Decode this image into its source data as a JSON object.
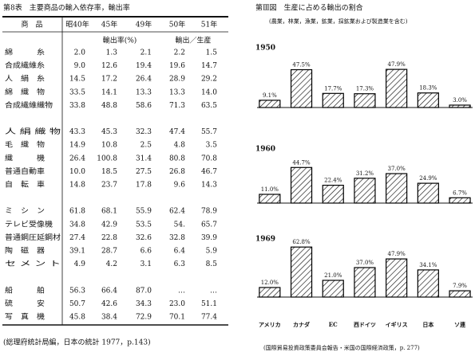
{
  "table": {
    "title": "第8表　主要商品の輸入依存率，輸出率",
    "header": [
      "商　品",
      "昭40年",
      "45年",
      "49年",
      "50年",
      "51年"
    ],
    "subheader": [
      "輸出率(%)",
      "輸出／生産"
    ],
    "groups": [
      [
        {
          "name": "綿　　　糸",
          "cells": [
            "2.0",
            "1.3",
            "2.1",
            "2.2",
            "1.5"
          ]
        },
        {
          "name": "合成繊維糸",
          "cells": [
            "9.0",
            "12.6",
            "19.4",
            "19.6",
            "14.7"
          ]
        },
        {
          "name": "人　絹　糸",
          "cells": [
            "14.5",
            "17.2",
            "26.4",
            "28.9",
            "29.2"
          ]
        },
        {
          "name": "綿　織　物",
          "cells": [
            "33.5",
            "14.1",
            "13.3",
            "13.3",
            "14.0"
          ]
        },
        {
          "name": "合成繊維織物",
          "cells": [
            "33.8",
            "48.8",
            "58.6",
            "71.3",
            "63.5"
          ]
        }
      ],
      [
        {
          "name": "人 絹 織 物",
          "cells": [
            "43.3",
            "45.3",
            "32.3",
            "47.4",
            "55.7"
          ]
        },
        {
          "name": "毛　織　物",
          "cells": [
            "14.9",
            "10.8",
            "2.5",
            "4.8",
            "3.5"
          ]
        },
        {
          "name": "織　　　機",
          "cells": [
            "26.4",
            "100.8",
            "31.4",
            "80.8",
            "70.8"
          ]
        },
        {
          "name": "普通自動車",
          "cells": [
            "10.0",
            "18.5",
            "27.5",
            "26.8",
            "46.7"
          ]
        },
        {
          "name": "自　転　車",
          "cells": [
            "14.8",
            "23.7",
            "17.8",
            "9.6",
            "14.3"
          ]
        }
      ],
      [
        {
          "name": "ミ　シ　ン",
          "cells": [
            "61.8",
            "68.1",
            "55.9",
            "62.4",
            "78.9"
          ]
        },
        {
          "name": "テレビ受像機",
          "cells": [
            "34.8",
            "42.9",
            "53.5",
            "54.",
            "65.7"
          ]
        },
        {
          "name": "普通鋼圧延鋼材",
          "cells": [
            "27.4",
            "22.8",
            "32.6",
            "32.8",
            "39.9"
          ]
        },
        {
          "name": "陶　磁　器",
          "cells": [
            "39.1",
            "28.7",
            "6.6",
            "6.4",
            "5.9"
          ]
        },
        {
          "name": "セ メ ン ト",
          "cells": [
            "4.9",
            "4.2",
            "3.1",
            "6.3",
            "8.5"
          ]
        }
      ],
      [
        {
          "name": "船　　　舶",
          "cells": [
            "56.3",
            "66.4",
            "87.0",
            "…",
            "…"
          ]
        },
        {
          "name": "硫　　　安",
          "cells": [
            "50.7",
            "42.6",
            "34.3",
            "23.0",
            "51.1"
          ]
        },
        {
          "name": "写　真　機",
          "cells": [
            "45.8",
            "38.4",
            "72.9",
            "70.1",
            "77.4"
          ]
        }
      ]
    ],
    "note": "(総理府統計局編，日本の統計 1977，p.143)"
  },
  "figure": {
    "title": "第Ⅲ図　生産に占める輸出の割合",
    "subtitle": "(農業，林業，漁業，鉱業，採鉱業および製造業を含む)",
    "source": "(国際貿易投資政策委員会報告・米国の国際経済政策，p. 277)"
  },
  "chart_data": [
    {
      "type": "bar",
      "title": "1950",
      "color": "#000000",
      "values": [
        9.1,
        47.5,
        17.7,
        17.3,
        47.9,
        18.3,
        3.0
      ],
      "value_labels": [
        "9.1%",
        "47.5%",
        "17.7%",
        "17.3%",
        "47.9%",
        "18.3%",
        "3.0%"
      ]
    },
    {
      "type": "bar",
      "title": "1960",
      "color": "#000000",
      "values": [
        11.0,
        44.7,
        22.4,
        31.2,
        37.0,
        24.9,
        6.7
      ],
      "value_labels": [
        "11.0%",
        "44.7%",
        "22.4%",
        "31.2%",
        "37.0%",
        "24.9%",
        "6.7%"
      ]
    },
    {
      "type": "bar",
      "title": "1969",
      "color": "#000000",
      "categories": [
        "アメリカ",
        "カナダ",
        "EC",
        "西ドイツ",
        "イギリス",
        "日本",
        "ソ連"
      ],
      "values": [
        12.0,
        62.8,
        21.0,
        37.0,
        47.9,
        34.1,
        7.9
      ],
      "value_labels": [
        "12.0%",
        "62.8%",
        "21.0%",
        "37.0%",
        "47.9%",
        "34.1%",
        "7.9%"
      ]
    }
  ]
}
